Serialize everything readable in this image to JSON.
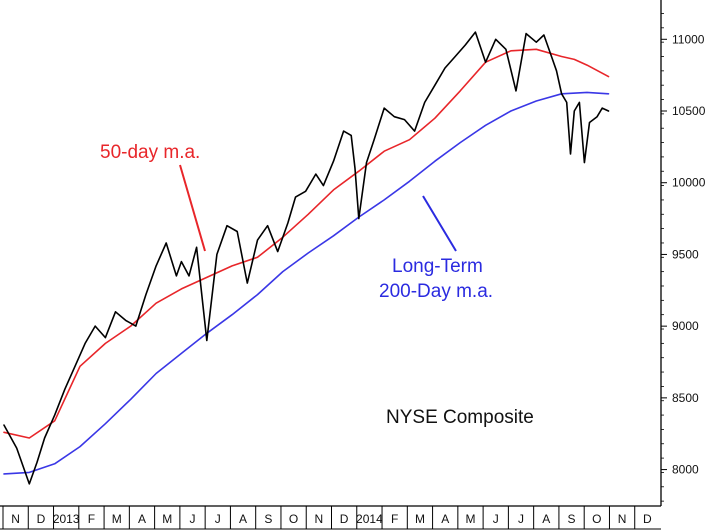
{
  "chart_data": {
    "type": "line",
    "title": "NYSE Composite",
    "xlabel": "",
    "ylabel": "",
    "ylim": [
      7760,
      11260
    ],
    "y_ticks": [
      8000,
      8500,
      9000,
      9500,
      10000,
      10500,
      11000
    ],
    "y_tick_labels": [
      "8000",
      "8500",
      "9000",
      "9500",
      "10000",
      "10500",
      "11000"
    ],
    "x_tick_labels": [
      "N",
      "D",
      "2013",
      "F",
      "M",
      "A",
      "M",
      "J",
      "J",
      "A",
      "S",
      "O",
      "N",
      "D",
      "2014",
      "F",
      "M",
      "A",
      "M",
      "J",
      "J",
      "A",
      "S",
      "O",
      "N",
      "D"
    ],
    "grid": false,
    "legend": "none",
    "annotations": {
      "ma50": "50-day m.a.",
      "ma200_line1": "Long-Term",
      "ma200_line2": "200-Day m.a."
    },
    "colors": {
      "price": "#000000",
      "ma50": "#e8262a",
      "ma200": "#3a37e6",
      "annotation_red": "#e8262a",
      "annotation_blue": "#2b2be0",
      "title": "#111111"
    },
    "series": [
      {
        "key": "price",
        "x": [
          0,
          0.5,
          1,
          1.3,
          1.6,
          2,
          2.4,
          2.8,
          3.2,
          3.6,
          4,
          4.4,
          4.8,
          5.2,
          5.6,
          6,
          6.4,
          6.8,
          7,
          7.3,
          7.6,
          8,
          8.4,
          8.8,
          9.2,
          9.6,
          10,
          10.4,
          10.8,
          11.2,
          11.5,
          11.9,
          12.3,
          12.6,
          13,
          13.4,
          13.7,
          13.85,
          14,
          14.3,
          14.6,
          15,
          15.4,
          15.8,
          16.2,
          16.6,
          17,
          17.4,
          17.8,
          18.2,
          18.6,
          19,
          19.4,
          19.8,
          20.2,
          20.6,
          21,
          21.3,
          21.6,
          21.8,
          22,
          22.2,
          22.35,
          22.5,
          22.7,
          22.9,
          23.1,
          23.4,
          23.6,
          23.85
        ],
        "values": [
          8310,
          8150,
          7900,
          8050,
          8220,
          8380,
          8560,
          8720,
          8880,
          9000,
          8920,
          9100,
          9040,
          9000,
          9220,
          9420,
          9580,
          9350,
          9450,
          9350,
          9550,
          8900,
          9500,
          9700,
          9660,
          9300,
          9600,
          9700,
          9520,
          9720,
          9900,
          9940,
          10060,
          9980,
          10150,
          10360,
          10330,
          10100,
          9750,
          10140,
          10300,
          10520,
          10460,
          10440,
          10360,
          10560,
          10680,
          10800,
          10880,
          10960,
          11050,
          10840,
          11000,
          10930,
          10640,
          11040,
          10980,
          11030,
          10880,
          10780,
          10620,
          10560,
          10200,
          10500,
          10560,
          10140,
          10420,
          10460,
          10520,
          10500
        ]
      },
      {
        "key": "ma50",
        "x": [
          0,
          1,
          2,
          3,
          4,
          5,
          6,
          7,
          8,
          9,
          10,
          11,
          12,
          13,
          14,
          15,
          16,
          17,
          18,
          19,
          20,
          21,
          22,
          22.5,
          23,
          23.85
        ],
        "values": [
          8260,
          8220,
          8340,
          8720,
          8880,
          9000,
          9160,
          9260,
          9340,
          9420,
          9480,
          9620,
          9780,
          9950,
          10080,
          10220,
          10300,
          10450,
          10640,
          10840,
          10920,
          10930,
          10880,
          10860,
          10820,
          10740
        ]
      },
      {
        "key": "ma200",
        "x": [
          0,
          1,
          2,
          3,
          4,
          5,
          6,
          7,
          8,
          9,
          10,
          11,
          12,
          13,
          14,
          15,
          16,
          17,
          18,
          19,
          20,
          21,
          22,
          23,
          23.85
        ],
        "values": [
          7970,
          7980,
          8040,
          8160,
          8320,
          8490,
          8670,
          8810,
          8950,
          9080,
          9220,
          9380,
          9510,
          9630,
          9760,
          9880,
          10010,
          10150,
          10280,
          10400,
          10500,
          10570,
          10620,
          10630,
          10620
        ]
      }
    ]
  }
}
